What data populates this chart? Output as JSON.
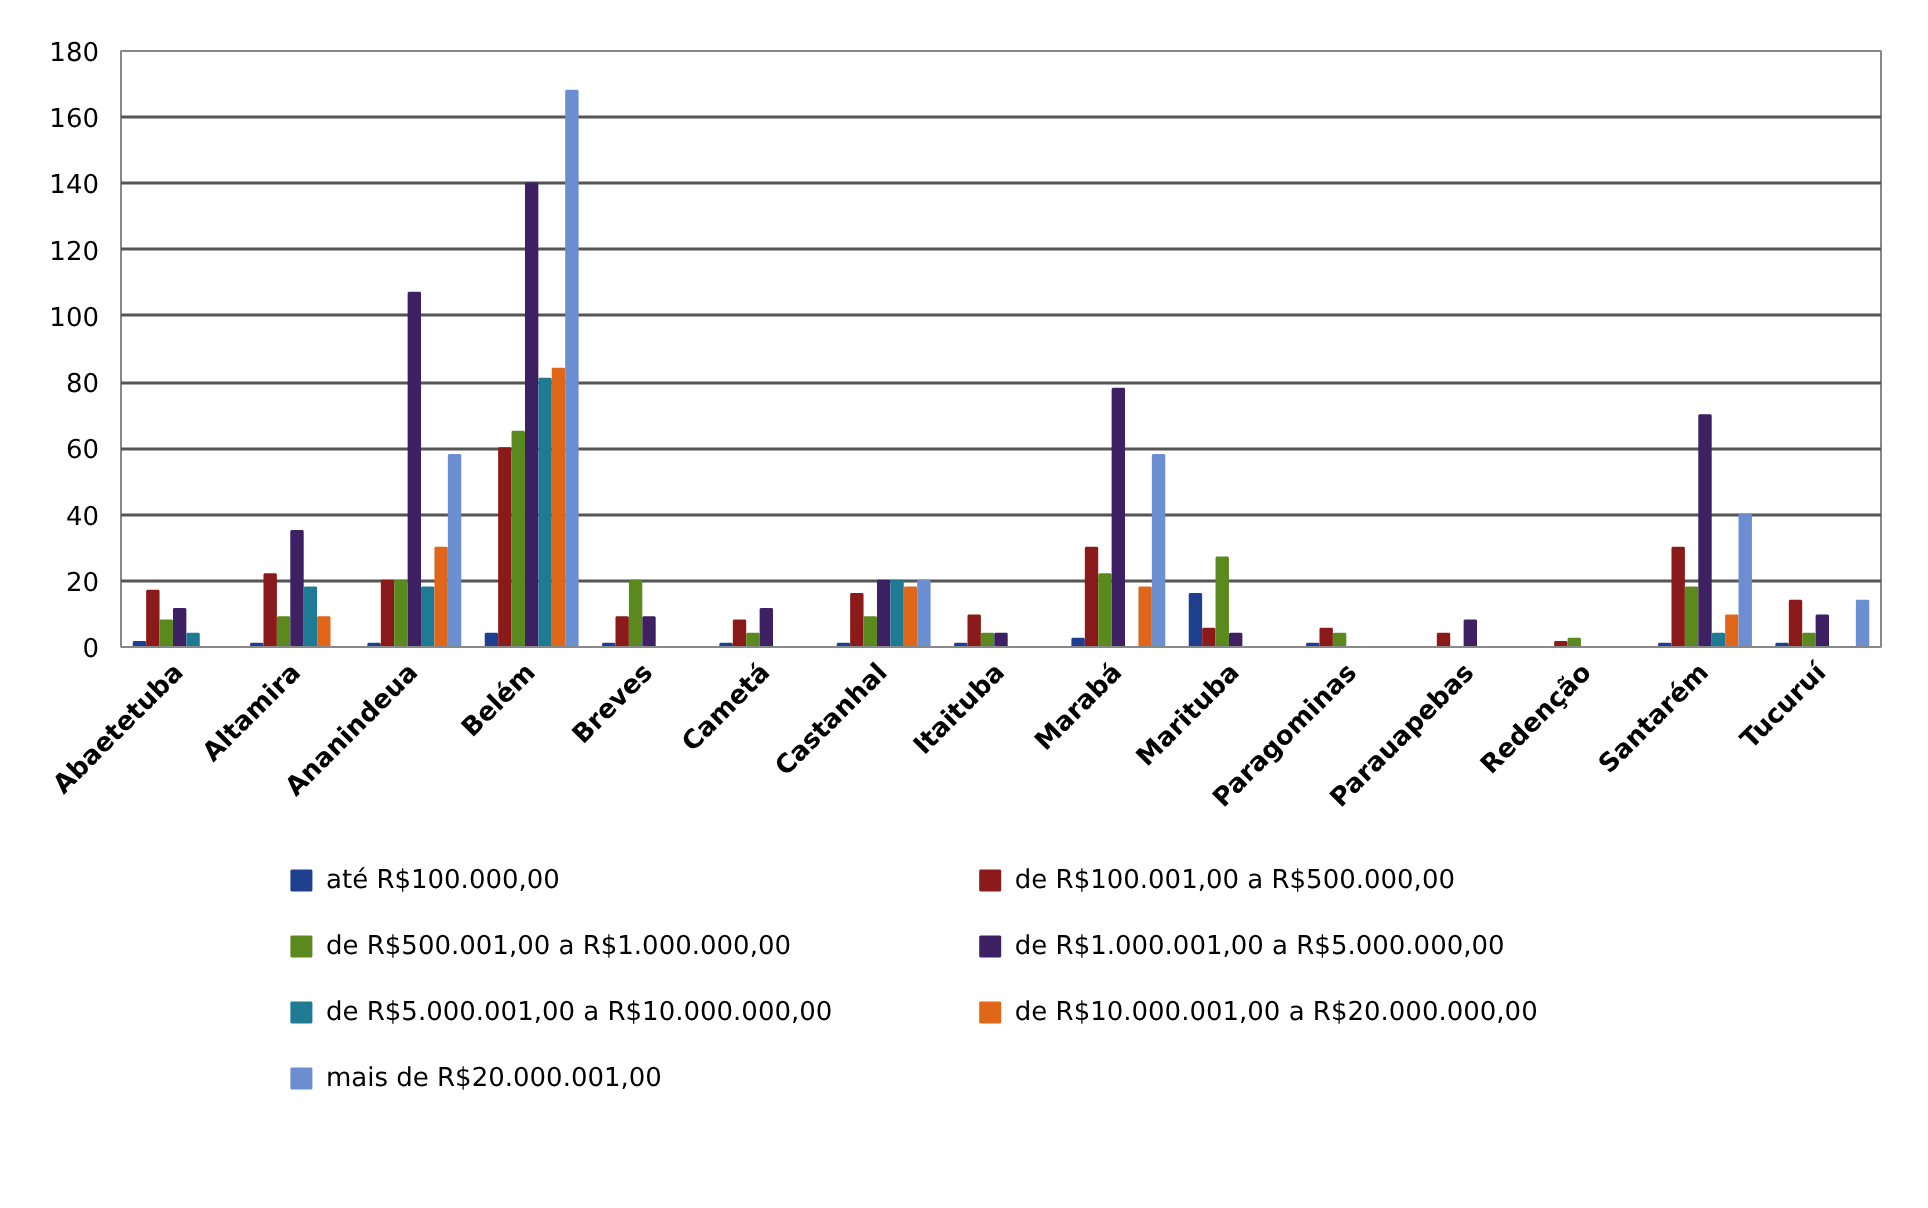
{
  "chart_data": {
    "type": "bar",
    "categories": [
      "Abaetetuba",
      "Altamira",
      "Ananindeua",
      "Belém",
      "Breves",
      "Cametá",
      "Castanhal",
      "Itaituba",
      "Marabá",
      "Marituba",
      "Paragominas",
      "Parauapebas",
      "Redenção",
      "Santarém",
      "Tucuruí"
    ],
    "series": [
      {
        "name": "até R$100.000,00",
        "color": "#1f3f8f",
        "values": [
          1.5,
          1,
          1,
          4,
          1,
          1,
          1,
          1,
          2.5,
          16,
          1,
          0,
          0,
          1,
          1
        ]
      },
      {
        "name": "de R$100.001,00 a R$500.000,00",
        "color": "#8b1a1a",
        "values": [
          17,
          22,
          20,
          60,
          9,
          8,
          16,
          9.5,
          30,
          5.5,
          5.5,
          4,
          1.5,
          30,
          14
        ]
      },
      {
        "name": "de R$500.001,00 a R$1.000.000,00",
        "color": "#5a8a1e",
        "values": [
          8,
          9,
          20,
          65,
          20,
          4,
          9,
          4,
          22,
          27,
          4,
          0,
          2.5,
          18,
          4
        ]
      },
      {
        "name": "de R$1.000.001,00 a R$5.000.000,00",
        "color": "#3d2163",
        "values": [
          11.5,
          35,
          107,
          140,
          9,
          11.5,
          20,
          4,
          78,
          4,
          0,
          8,
          0,
          70,
          9.5
        ]
      },
      {
        "name": "de R$5.000.001,00 a R$10.000.000,00",
        "color": "#1f7a94",
        "values": [
          4,
          18,
          18,
          81,
          0,
          0,
          20,
          0,
          0,
          0,
          0,
          0,
          0,
          4,
          0
        ]
      },
      {
        "name": "de R$10.000.001,00 a R$20.000.000,00",
        "color": "#e0661a",
        "values": [
          0,
          9,
          30,
          84,
          0,
          0,
          18,
          0,
          18,
          0,
          0,
          0,
          0,
          9.5,
          0
        ]
      },
      {
        "name": "mais de R$20.000.001,00",
        "color": "#6b8fd0",
        "values": [
          0,
          0,
          58,
          168,
          0,
          0,
          20,
          0,
          58,
          0,
          0,
          0,
          0,
          40,
          14
        ]
      }
    ],
    "ylim": [
      0,
      180
    ],
    "yticks": [
      0,
      20,
      40,
      60,
      80,
      100,
      120,
      140,
      160,
      180
    ],
    "grid": "y",
    "legend": "bottom"
  }
}
